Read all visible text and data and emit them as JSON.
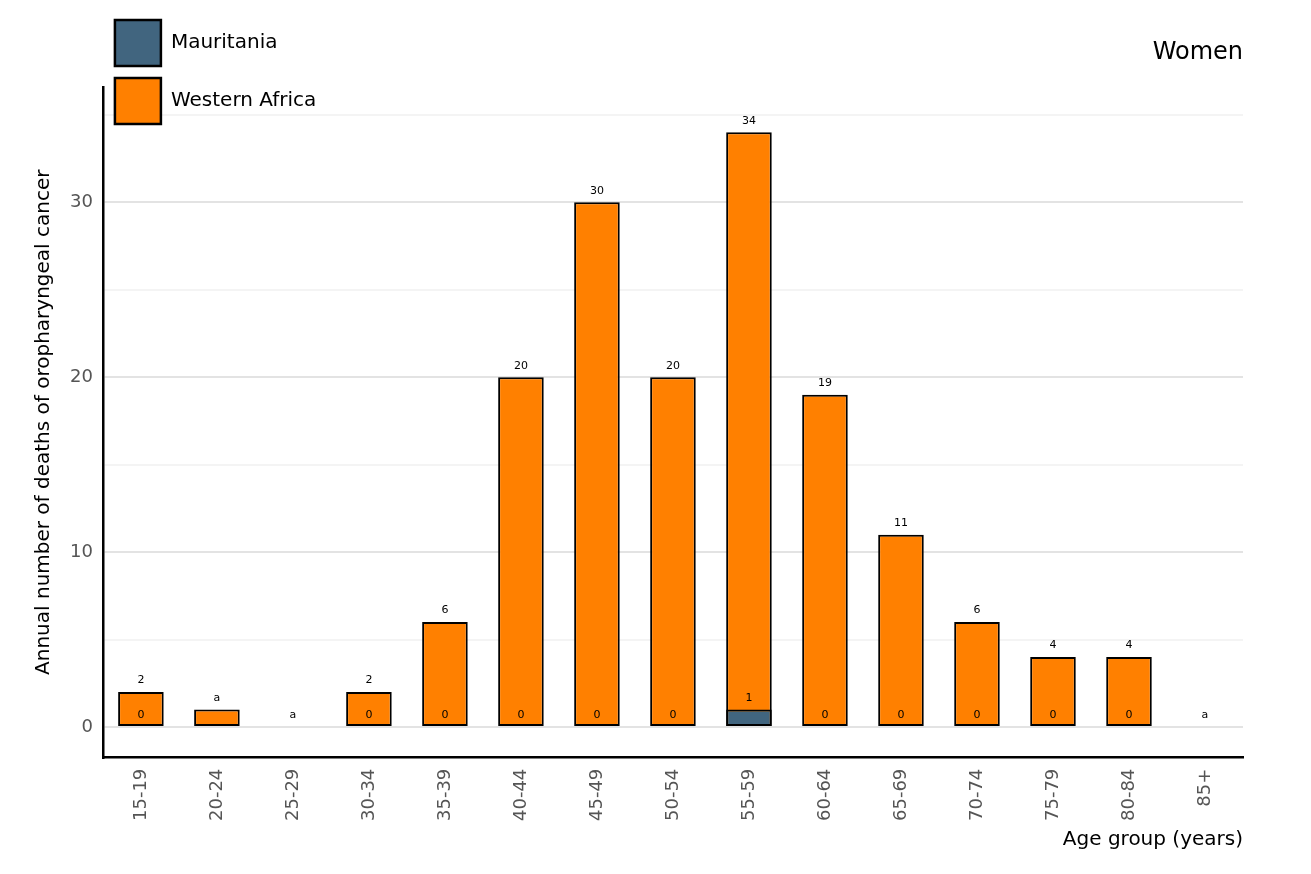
{
  "chart_data": {
    "type": "bar",
    "title": "Women",
    "xlabel": "Age group (years)",
    "ylabel": "Annual number of deaths of oropharyngeal cancer",
    "categories": [
      "15-19",
      "20-24",
      "25-29",
      "30-34",
      "35-39",
      "40-44",
      "45-49",
      "50-54",
      "55-59",
      "60-64",
      "65-69",
      "70-74",
      "75-79",
      "80-84",
      "85+"
    ],
    "series": [
      {
        "name": "Mauritania",
        "color": "#41657f",
        "values": [
          0,
          null,
          null,
          0,
          0,
          0,
          0,
          0,
          1,
          0,
          0,
          0,
          0,
          0,
          null
        ],
        "value_labels": [
          "0",
          null,
          null,
          "0",
          "0",
          "0",
          "0",
          "0",
          "1",
          "0",
          "0",
          "0",
          "0",
          "0",
          null
        ]
      },
      {
        "name": "Western Africa",
        "color": "#ff8000",
        "values": [
          2,
          1,
          0,
          2,
          6,
          20,
          30,
          20,
          34,
          19,
          11,
          6,
          4,
          4,
          0
        ],
        "value_labels": [
          "2",
          "a",
          "a",
          "2",
          "6",
          "20",
          "30",
          "20",
          "34",
          "19",
          "11",
          "6",
          "4",
          "4",
          "a"
        ]
      }
    ],
    "ylim": [
      -1.75,
      36.6
    ],
    "yticks": [
      0,
      {
        "value": 5,
        "label": null
      },
      10,
      {
        "value": 15,
        "label": null
      },
      20,
      {
        "value": 25,
        "label": null
      },
      30,
      {
        "value": 35,
        "label": null
      }
    ],
    "grid": "y",
    "legend": "top left"
  }
}
